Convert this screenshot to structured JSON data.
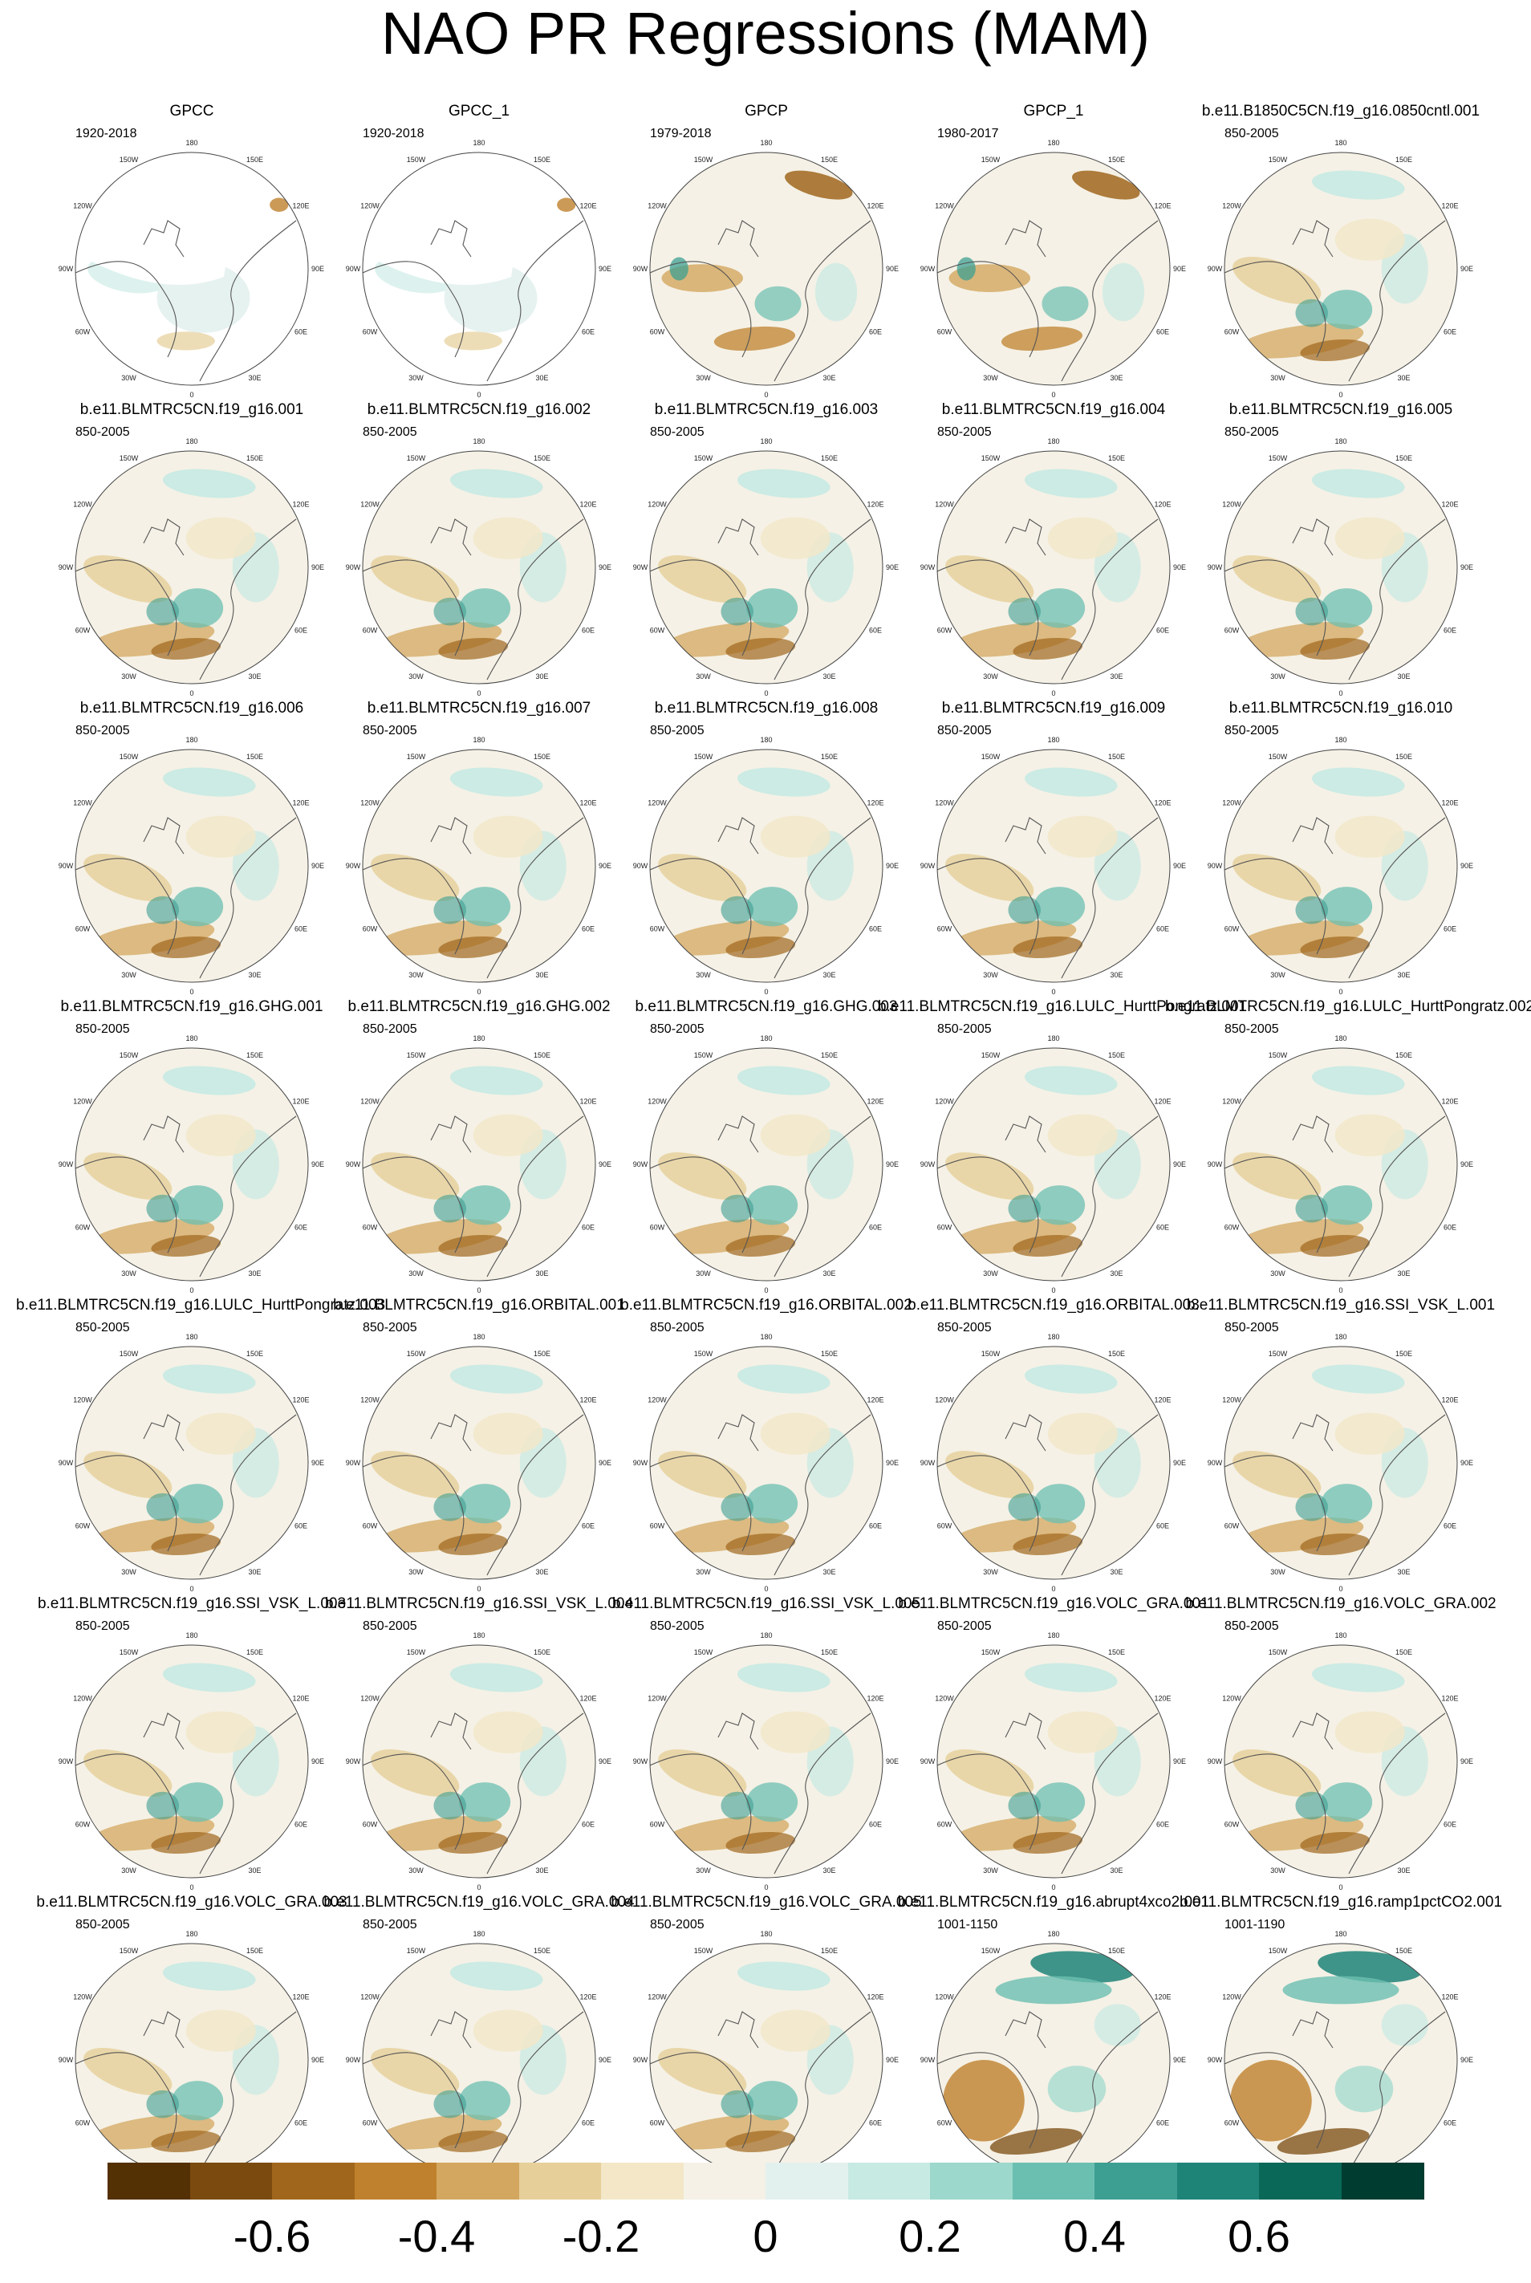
{
  "title": "NAO PR Regressions (MAM)",
  "grid_labels": {
    "longitudes": [
      "180",
      "150E",
      "120E",
      "90E",
      "60E",
      "30E",
      "0",
      "30W",
      "60W",
      "90W",
      "120W",
      "150W"
    ]
  },
  "panels": [
    {
      "title": "GPCC",
      "period": "1920-2018",
      "style": "obs"
    },
    {
      "title": "GPCC_1",
      "period": "1920-2018",
      "style": "obs"
    },
    {
      "title": "GPCP",
      "period": "1979-2018",
      "style": "strong"
    },
    {
      "title": "GPCP_1",
      "period": "1980-2017",
      "style": "strong"
    },
    {
      "title": "b.e11.B1850C5CN.f19_g16.0850cntl.001",
      "period": "850-2005",
      "style": "model"
    },
    {
      "title": "b.e11.BLMTRC5CN.f19_g16.001",
      "period": "850-2005",
      "style": "model"
    },
    {
      "title": "b.e11.BLMTRC5CN.f19_g16.002",
      "period": "850-2005",
      "style": "model"
    },
    {
      "title": "b.e11.BLMTRC5CN.f19_g16.003",
      "period": "850-2005",
      "style": "model"
    },
    {
      "title": "b.e11.BLMTRC5CN.f19_g16.004",
      "period": "850-2005",
      "style": "model"
    },
    {
      "title": "b.e11.BLMTRC5CN.f19_g16.005",
      "period": "850-2005",
      "style": "model"
    },
    {
      "title": "b.e11.BLMTRC5CN.f19_g16.006",
      "period": "850-2005",
      "style": "model"
    },
    {
      "title": "b.e11.BLMTRC5CN.f19_g16.007",
      "period": "850-2005",
      "style": "model"
    },
    {
      "title": "b.e11.BLMTRC5CN.f19_g16.008",
      "period": "850-2005",
      "style": "model"
    },
    {
      "title": "b.e11.BLMTRC5CN.f19_g16.009",
      "period": "850-2005",
      "style": "model"
    },
    {
      "title": "b.e11.BLMTRC5CN.f19_g16.010",
      "period": "850-2005",
      "style": "model"
    },
    {
      "title": "b.e11.BLMTRC5CN.f19_g16.GHG.001",
      "period": "850-2005",
      "style": "model"
    },
    {
      "title": "b.e11.BLMTRC5CN.f19_g16.GHG.002",
      "period": "850-2005",
      "style": "model"
    },
    {
      "title": "b.e11.BLMTRC5CN.f19_g16.GHG.003",
      "period": "850-2005",
      "style": "model"
    },
    {
      "title": "b.e11.BLMTRC5CN.f19_g16.LULC_HurttPongratz.001",
      "period": "850-2005",
      "style": "model"
    },
    {
      "title": "b.e11.BLMTRC5CN.f19_g16.LULC_HurttPongratz.002",
      "period": "850-2005",
      "style": "model"
    },
    {
      "title": "b.e11.BLMTRC5CN.f19_g16.LULC_HurttPongratz.003",
      "period": "850-2005",
      "style": "model"
    },
    {
      "title": "b.e11.BLMTRC5CN.f19_g16.ORBITAL.001",
      "period": "850-2005",
      "style": "model"
    },
    {
      "title": "b.e11.BLMTRC5CN.f19_g16.ORBITAL.002",
      "period": "850-2005",
      "style": "model"
    },
    {
      "title": "b.e11.BLMTRC5CN.f19_g16.ORBITAL.003",
      "period": "850-2005",
      "style": "model"
    },
    {
      "title": "b.e11.BLMTRC5CN.f19_g16.SSI_VSK_L.001",
      "period": "850-2005",
      "style": "model"
    },
    {
      "title": "b.e11.BLMTRC5CN.f19_g16.SSI_VSK_L.003",
      "period": "850-2005",
      "style": "model"
    },
    {
      "title": "b.e11.BLMTRC5CN.f19_g16.SSI_VSK_L.004",
      "period": "850-2005",
      "style": "model"
    },
    {
      "title": "b.e11.BLMTRC5CN.f19_g16.SSI_VSK_L.005",
      "period": "850-2005",
      "style": "model"
    },
    {
      "title": "b.e11.BLMTRC5CN.f19_g16.VOLC_GRA.001",
      "period": "850-2005",
      "style": "model"
    },
    {
      "title": "b.e11.BLMTRC5CN.f19_g16.VOLC_GRA.002",
      "period": "850-2005",
      "style": "model"
    },
    {
      "title": "b.e11.BLMTRC5CN.f19_g16.VOLC_GRA.003",
      "period": "850-2005",
      "style": "model"
    },
    {
      "title": "b.e11.BLMTRC5CN.f19_g16.VOLC_GRA.004",
      "period": "850-2005",
      "style": "model"
    },
    {
      "title": "b.e11.BLMTRC5CN.f19_g16.VOLC_GRA.005",
      "period": "850-2005",
      "style": "model"
    },
    {
      "title": "b.e11.BLMTRC5CN.f19_g16.abrupt4xco2.001",
      "period": "1001-1150",
      "style": "co2"
    },
    {
      "title": "b.e11.BLMTRC5CN.f19_g16.ramp1pctCO2.001",
      "period": "1001-1190",
      "style": "co2"
    }
  ],
  "colorbar": {
    "colors": [
      "#543005",
      "#7a4a0f",
      "#a0661c",
      "#bf812d",
      "#d3a75f",
      "#e6cf98",
      "#f3e7c8",
      "#f5f1e6",
      "#e3f1ee",
      "#c7eae3",
      "#9cd8cc",
      "#6bbfb1",
      "#3d9f92",
      "#1f8478",
      "#0a6858",
      "#003c30"
    ],
    "labels": [
      "-0.6",
      "-0.4",
      "-0.2",
      "0",
      "0.2",
      "0.4",
      "0.6"
    ],
    "label_values": [
      -0.6,
      -0.4,
      -0.2,
      0,
      0.2,
      0.4,
      0.6
    ],
    "min": -0.8,
    "max": 0.8
  }
}
